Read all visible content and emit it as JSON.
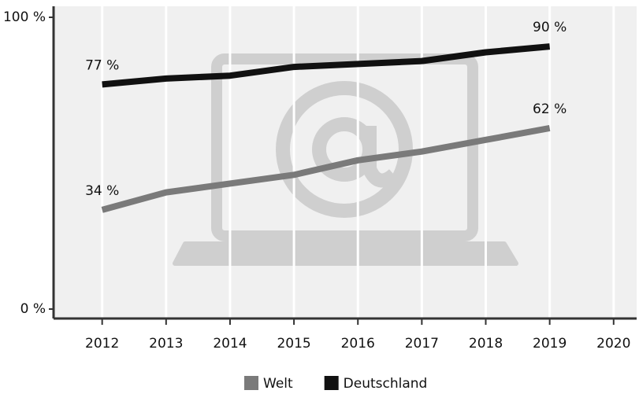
{
  "chart_data": {
    "type": "line",
    "x": [
      2012,
      2013,
      2014,
      2015,
      2016,
      2017,
      2018,
      2019
    ],
    "series": [
      {
        "name": "Welt",
        "color": "#7a7a7a",
        "values": [
          34,
          40,
          43,
          46,
          51,
          54,
          58,
          62
        ],
        "value_labels": [
          "34 %",
          null,
          null,
          null,
          null,
          null,
          null,
          "62 %"
        ]
      },
      {
        "name": "Deutschland",
        "color": "#111111",
        "values": [
          77,
          79,
          80,
          83,
          84,
          85,
          88,
          90
        ],
        "value_labels": [
          "77 %",
          null,
          null,
          null,
          null,
          null,
          null,
          "90 %"
        ]
      }
    ],
    "xlim": [
      2011.24,
      2020.36
    ],
    "xticks": [
      2012,
      2013,
      2014,
      2015,
      2016,
      2017,
      2018,
      2019,
      2020
    ],
    "ylim": [
      0,
      100
    ],
    "yticks": [
      {
        "value": 0,
        "label": "0 %"
      },
      {
        "value": 100,
        "label": "100 %"
      }
    ],
    "grid": true
  }
}
